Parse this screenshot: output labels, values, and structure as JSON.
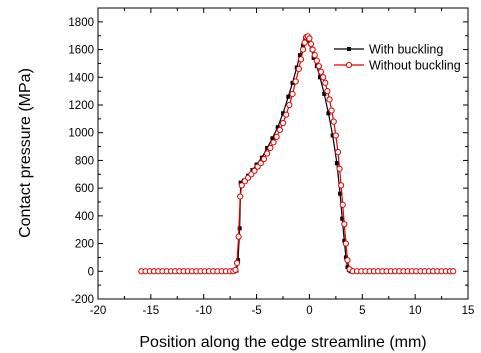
{
  "chart_data": {
    "type": "line",
    "xlabel": "Position along the edge streamline (mm)",
    "ylabel": "Contact pressure (MPa)",
    "xlim": [
      -20,
      15
    ],
    "ylim": [
      -200,
      1900
    ],
    "xticks": [
      -20,
      -15,
      -10,
      -5,
      0,
      5,
      10,
      15
    ],
    "yticks": [
      -200,
      0,
      200,
      400,
      600,
      800,
      1000,
      1200,
      1400,
      1600,
      1800
    ],
    "grid": false,
    "legend_position": "top-right",
    "series": [
      {
        "name": "With buckling",
        "color": "#000000",
        "marker": "filled-square",
        "x": [
          -15.9,
          -15.3,
          -14.7,
          -14.1,
          -13.5,
          -12.9,
          -12.3,
          -11.7,
          -11.1,
          -10.5,
          -9.9,
          -9.3,
          -8.7,
          -8.1,
          -7.5,
          -7.1,
          -6.9,
          -6.75,
          -6.6,
          -6.5,
          -6.2,
          -5.8,
          -5.4,
          -5.0,
          -4.5,
          -4.0,
          -3.5,
          -3.0,
          -2.5,
          -2.0,
          -1.6,
          -1.2,
          -0.9,
          -0.6,
          -0.4,
          -0.2,
          0.0,
          0.2,
          0.4,
          0.7,
          1.0,
          1.4,
          1.8,
          2.2,
          2.6,
          2.9,
          3.1,
          3.3,
          3.45,
          3.6,
          3.75,
          3.9,
          4.2,
          4.8,
          5.4,
          6.0,
          6.6,
          7.2,
          7.8,
          8.4,
          9.0,
          9.6,
          10.2,
          10.8,
          11.4,
          12.0,
          12.6,
          13.2,
          13.6
        ],
        "y": [
          0,
          0,
          0,
          0,
          0,
          0,
          0,
          0,
          0,
          0,
          0,
          0,
          0,
          0,
          0,
          0,
          5,
          80,
          310,
          640,
          655,
          690,
          730,
          770,
          820,
          890,
          960,
          1040,
          1140,
          1260,
          1360,
          1470,
          1560,
          1630,
          1680,
          1690,
          1665,
          1600,
          1540,
          1480,
          1400,
          1280,
          1140,
          980,
          780,
          560,
          380,
          220,
          100,
          30,
          8,
          0,
          0,
          0,
          0,
          0,
          0,
          0,
          0,
          0,
          0,
          0,
          0,
          0,
          0,
          0,
          0,
          0,
          0
        ]
      },
      {
        "name": "Without buckling",
        "color": "#e00000",
        "marker": "open-circle",
        "x": [
          -15.9,
          -15.5,
          -15.1,
          -14.7,
          -14.3,
          -13.9,
          -13.5,
          -13.1,
          -12.7,
          -12.3,
          -11.9,
          -11.5,
          -11.1,
          -10.7,
          -10.3,
          -9.9,
          -9.5,
          -9.1,
          -8.7,
          -8.3,
          -7.9,
          -7.5,
          -7.2,
          -7.0,
          -6.85,
          -6.7,
          -6.55,
          -6.4,
          -6.1,
          -5.8,
          -5.5,
          -5.2,
          -4.9,
          -4.6,
          -4.3,
          -4.0,
          -3.7,
          -3.4,
          -3.1,
          -2.8,
          -2.5,
          -2.2,
          -1.9,
          -1.6,
          -1.3,
          -1.0,
          -0.8,
          -0.6,
          -0.45,
          -0.3,
          -0.15,
          0.0,
          0.15,
          0.3,
          0.5,
          0.7,
          0.9,
          1.1,
          1.3,
          1.5,
          1.7,
          1.9,
          2.1,
          2.3,
          2.5,
          2.7,
          2.85,
          3.0,
          3.15,
          3.3,
          3.45,
          3.6,
          3.8,
          4.1,
          4.5,
          4.9,
          5.3,
          5.7,
          6.1,
          6.5,
          6.9,
          7.3,
          7.7,
          8.1,
          8.5,
          8.9,
          9.3,
          9.7,
          10.1,
          10.5,
          10.9,
          11.3,
          11.7,
          12.1,
          12.5,
          12.9,
          13.3,
          13.6
        ],
        "y": [
          0,
          0,
          0,
          0,
          0,
          0,
          0,
          0,
          0,
          0,
          0,
          0,
          0,
          0,
          0,
          0,
          0,
          0,
          0,
          0,
          0,
          0,
          0,
          10,
          60,
          250,
          540,
          620,
          650,
          675,
          700,
          725,
          755,
          780,
          810,
          850,
          890,
          930,
          970,
          1020,
          1070,
          1130,
          1200,
          1280,
          1370,
          1460,
          1530,
          1600,
          1650,
          1690,
          1695,
          1680,
          1640,
          1600,
          1560,
          1520,
          1480,
          1440,
          1400,
          1360,
          1300,
          1240,
          1160,
          1080,
          980,
          860,
          740,
          620,
          480,
          340,
          200,
          80,
          15,
          0,
          0,
          0,
          0,
          0,
          0,
          0,
          0,
          0,
          0,
          0,
          0,
          0,
          0,
          0,
          0,
          0,
          0,
          0,
          0,
          0,
          0,
          0,
          0,
          0
        ]
      }
    ]
  }
}
